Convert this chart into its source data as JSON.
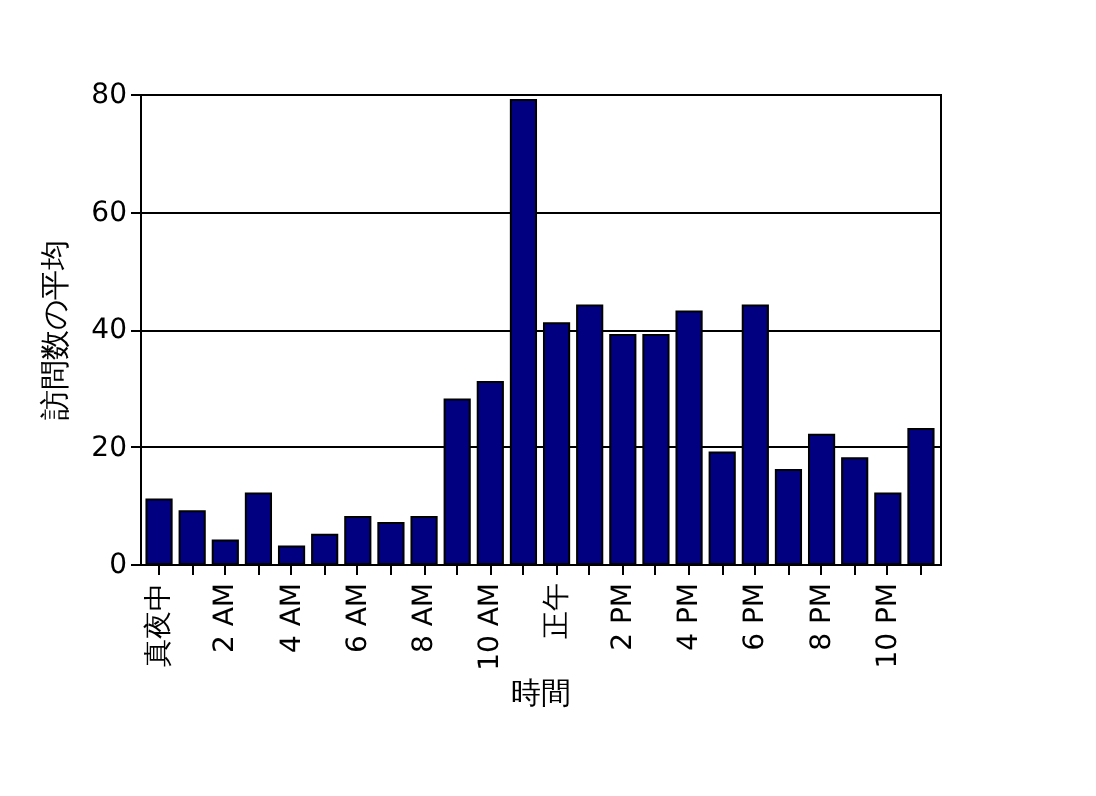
{
  "chart_data": {
    "type": "bar",
    "xlabel": "時間",
    "ylabel": "訪問数の平均",
    "categories": [
      "真夜中",
      null,
      "2 AM",
      null,
      "4 AM",
      null,
      "6 AM",
      null,
      "8 AM",
      null,
      "10 AM",
      null,
      "正午",
      null,
      "2 PM",
      null,
      "4 PM",
      null,
      "6 PM",
      null,
      "8 PM",
      null,
      "10 PM",
      null
    ],
    "values": [
      11,
      9,
      4,
      12,
      3,
      5,
      8,
      7,
      8,
      28,
      31,
      79,
      41,
      44,
      39,
      39,
      43,
      19,
      44,
      16,
      22,
      18,
      12,
      23
    ],
    "color": "#000080",
    "ylim": [
      0,
      80
    ],
    "yticks": [
      0,
      20,
      40,
      60,
      80
    ],
    "grid": "y"
  }
}
